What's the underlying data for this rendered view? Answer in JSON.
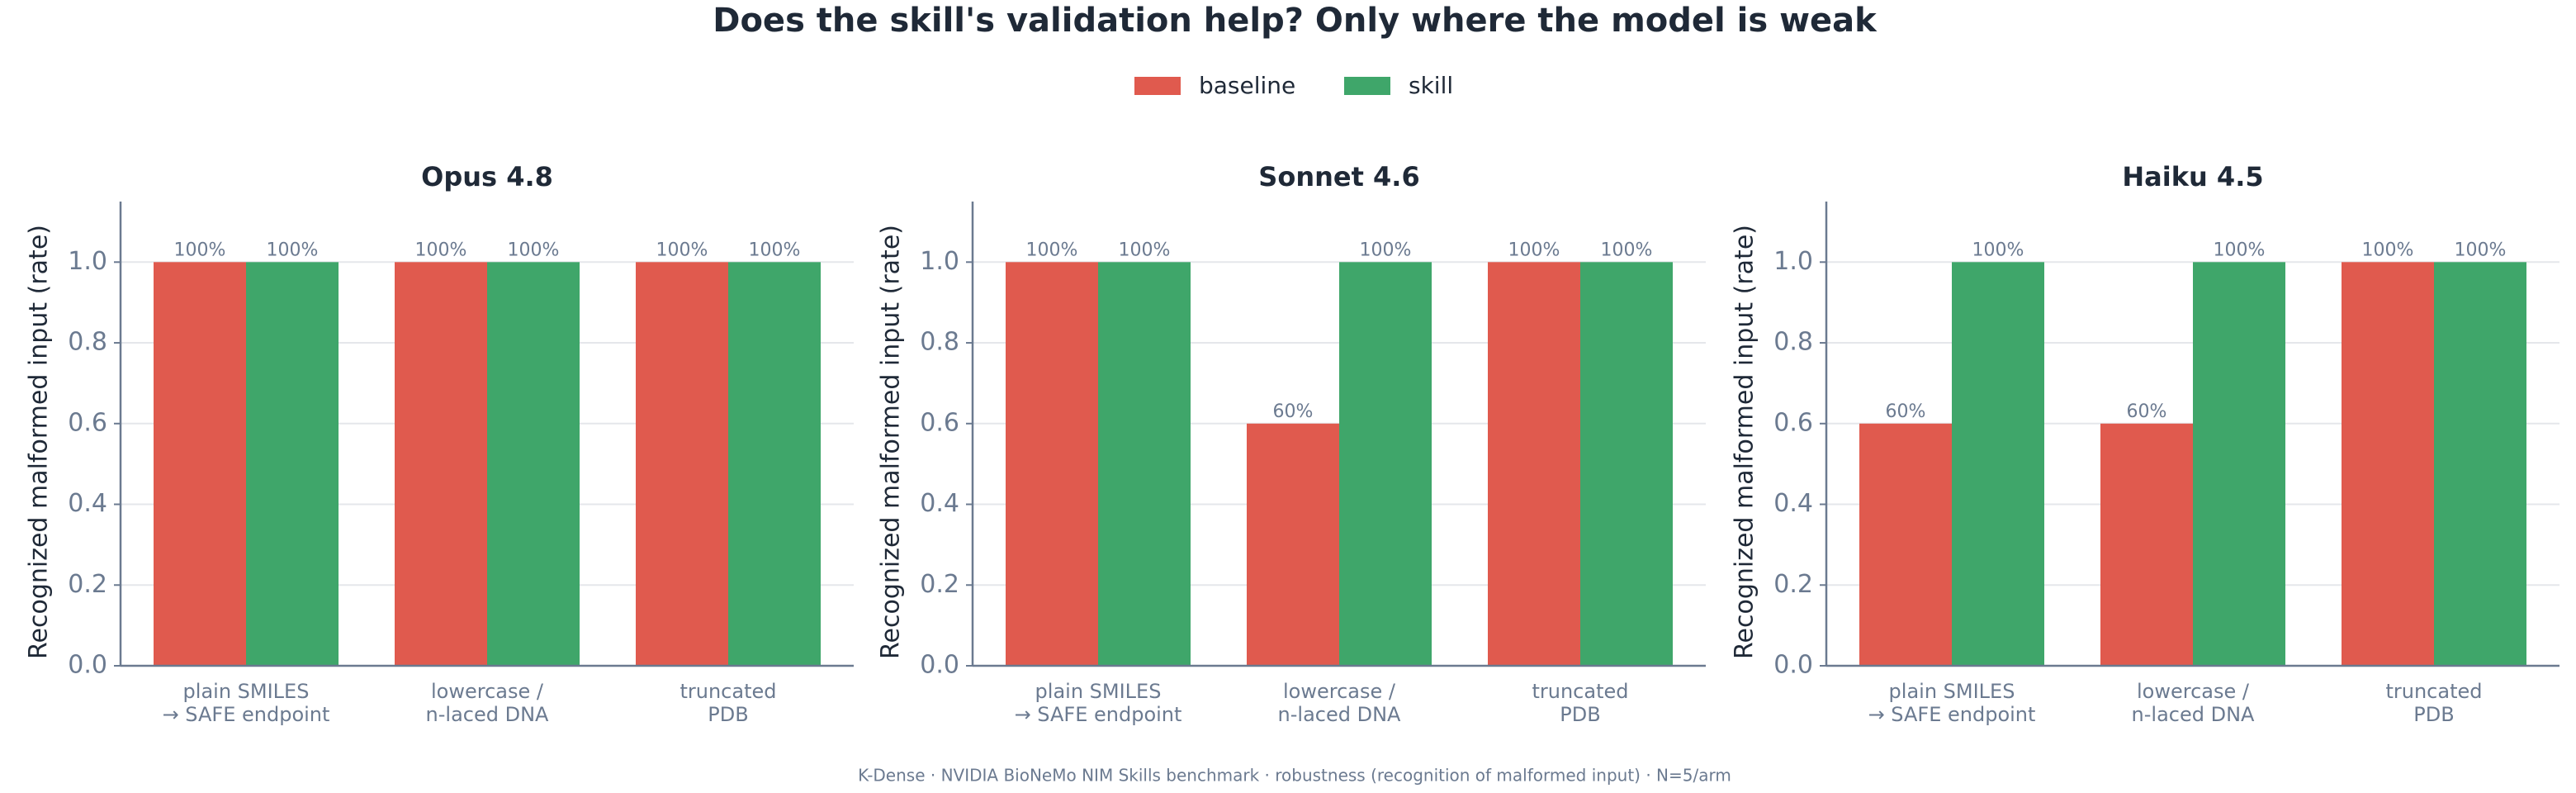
{
  "title": "Does the skill's validation help? Only where the model is weak",
  "footnote": "K-Dense  ·  NVIDIA BioNeMo NIM Skills benchmark  ·  robustness (recognition of malformed input)  ·  N=5/arm",
  "chart_data": [
    {
      "type": "bar",
      "title": "Opus 4.8",
      "y_label": "Recognized malformed input (rate)",
      "categories": [
        "plain SMILES\n→ SAFE endpoint",
        "lowercase /\nn-laced DNA",
        "truncated\nPDB"
      ],
      "series": [
        {
          "name": "baseline",
          "color": "#e05a4e",
          "values": [
            1.0,
            1.0,
            1.0
          ],
          "value_labels": [
            "100%",
            "100%",
            "100%"
          ]
        },
        {
          "name": "skill",
          "color": "#3fa66a",
          "values": [
            1.0,
            1.0,
            1.0
          ],
          "value_labels": [
            "100%",
            "100%",
            "100%"
          ]
        }
      ],
      "ylim": [
        0,
        1.15
      ],
      "yticks": [
        {
          "value": 0,
          "label": "0.0"
        },
        0.2,
        0.4,
        0.6,
        0.8,
        {
          "value": 1,
          "label": "1.0"
        }
      ],
      "grid": true
    },
    {
      "type": "bar",
      "title": "Sonnet 4.6",
      "y_label": "Recognized malformed input (rate)",
      "categories": [
        "plain SMILES\n→ SAFE endpoint",
        "lowercase /\nn-laced DNA",
        "truncated\nPDB"
      ],
      "series": [
        {
          "name": "baseline",
          "color": "#e05a4e",
          "values": [
            1.0,
            0.6,
            1.0
          ],
          "value_labels": [
            "100%",
            "60%",
            "100%"
          ]
        },
        {
          "name": "skill",
          "color": "#3fa66a",
          "values": [
            1.0,
            1.0,
            1.0
          ],
          "value_labels": [
            "100%",
            "100%",
            "100%"
          ]
        }
      ],
      "ylim": [
        0,
        1.15
      ],
      "yticks": [
        {
          "value": 0,
          "label": "0.0"
        },
        0.2,
        0.4,
        0.6,
        0.8,
        {
          "value": 1,
          "label": "1.0"
        }
      ],
      "grid": true
    },
    {
      "type": "bar",
      "title": "Haiku 4.5",
      "y_label": "Recognized malformed input (rate)",
      "categories": [
        "plain SMILES\n→ SAFE endpoint",
        "lowercase /\nn-laced DNA",
        "truncated\nPDB"
      ],
      "series": [
        {
          "name": "baseline",
          "color": "#e05a4e",
          "values": [
            0.6,
            0.6,
            1.0
          ],
          "value_labels": [
            "60%",
            "60%",
            "100%"
          ]
        },
        {
          "name": "skill",
          "color": "#3fa66a",
          "values": [
            1.0,
            1.0,
            1.0
          ],
          "value_labels": [
            "100%",
            "100%",
            "100%"
          ]
        }
      ],
      "ylim": [
        0,
        1.15
      ],
      "yticks": [
        {
          "value": 0,
          "label": "0.0"
        },
        0.2,
        0.4,
        0.6,
        0.8,
        {
          "value": 1,
          "label": "1.0"
        }
      ],
      "grid": true
    }
  ]
}
